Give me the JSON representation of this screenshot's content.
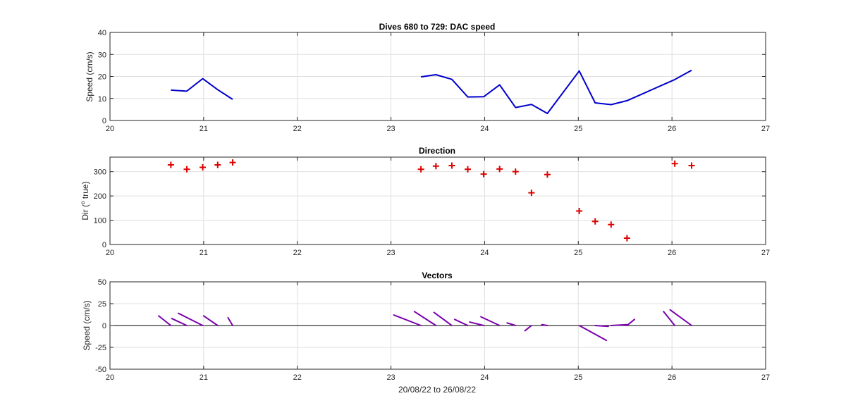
{
  "chart_data": [
    {
      "type": "line",
      "title": "Dives 680 to 729: DAC speed",
      "xlabel": "",
      "ylabel": "Speed (cm/s)",
      "xlim": [
        20,
        27
      ],
      "ylim": [
        0,
        40
      ],
      "xticks": [
        20,
        21,
        22,
        23,
        24,
        25,
        26,
        27
      ],
      "yticks": [
        0,
        10,
        20,
        30,
        40
      ],
      "grid": true,
      "color": "#0000cc",
      "segments": [
        {
          "x": [
            20.65,
            20.82,
            20.99,
            21.15,
            21.31
          ],
          "y": [
            13.8,
            13.3,
            19.0,
            14.0,
            9.6
          ]
        },
        {
          "x": [
            23.32,
            23.48,
            23.65,
            23.82,
            23.99,
            24.16,
            24.33,
            24.5,
            24.67,
            25.01,
            25.18,
            25.35,
            25.52,
            26.03,
            26.21
          ],
          "y": [
            19.8,
            20.8,
            18.7,
            10.7,
            10.8,
            16.2,
            5.9,
            7.3,
            3.2,
            22.5,
            8.0,
            7.2,
            9.0,
            18.6,
            22.8
          ]
        }
      ]
    },
    {
      "type": "scatter",
      "title": "Direction",
      "xlabel": "",
      "ylabel": "Dir (° true)",
      "ylabel_parts": {
        "prefix": "Dir (",
        "sup": "o",
        "suffix": " true)"
      },
      "xlim": [
        20,
        27
      ],
      "ylim": [
        0,
        360
      ],
      "xticks": [
        20,
        21,
        22,
        23,
        24,
        25,
        26,
        27
      ],
      "yticks": [
        0,
        100,
        200,
        300
      ],
      "grid": true,
      "marker": "+",
      "color": "#dd0000",
      "x": [
        20.65,
        20.82,
        20.99,
        21.15,
        21.31,
        23.32,
        23.48,
        23.65,
        23.82,
        23.99,
        24.16,
        24.33,
        24.5,
        24.67,
        25.01,
        25.18,
        25.35,
        25.52,
        26.03,
        26.21
      ],
      "y": [
        328,
        310,
        318,
        328,
        338,
        310,
        323,
        325,
        310,
        290,
        311,
        300,
        213,
        288,
        138,
        95,
        82,
        26,
        333,
        325
      ]
    },
    {
      "type": "line",
      "subtype": "vectors",
      "title": "Vectors",
      "xlabel": "20/08/22 to 26/08/22",
      "ylabel": "Speed (cm/s)",
      "xlim": [
        20,
        27
      ],
      "ylim": [
        -50,
        50
      ],
      "xticks": [
        20,
        21,
        22,
        23,
        24,
        25,
        26,
        27
      ],
      "yticks": [
        -50,
        -25,
        0,
        25,
        50
      ],
      "grid": true,
      "color": "#7a00aa",
      "zero_line": true,
      "vectors": [
        {
          "x0": 20.65,
          "y0": 0,
          "x1": 20.52,
          "y1": 11
        },
        {
          "x0": 20.82,
          "y0": 0,
          "x1": 20.66,
          "y1": 8
        },
        {
          "x0": 20.99,
          "y0": 0,
          "x1": 20.73,
          "y1": 14
        },
        {
          "x0": 21.15,
          "y0": 0,
          "x1": 21.0,
          "y1": 11
        },
        {
          "x0": 21.31,
          "y0": 0,
          "x1": 21.26,
          "y1": 9
        },
        {
          "x0": 23.32,
          "y0": 0,
          "x1": 23.03,
          "y1": 12
        },
        {
          "x0": 23.48,
          "y0": 0,
          "x1": 23.25,
          "y1": 16
        },
        {
          "x0": 23.65,
          "y0": 0,
          "x1": 23.46,
          "y1": 15
        },
        {
          "x0": 23.82,
          "y0": 0,
          "x1": 23.68,
          "y1": 7
        },
        {
          "x0": 23.99,
          "y0": 0,
          "x1": 23.84,
          "y1": 4
        },
        {
          "x0": 24.16,
          "y0": 0,
          "x1": 23.96,
          "y1": 10
        },
        {
          "x0": 24.33,
          "y0": 0,
          "x1": 24.24,
          "y1": 3
        },
        {
          "x0": 24.5,
          "y0": 0,
          "x1": 24.43,
          "y1": -6
        },
        {
          "x0": 24.67,
          "y0": 0,
          "x1": 24.61,
          "y1": 1
        },
        {
          "x0": 25.01,
          "y0": 0,
          "x1": 25.3,
          "y1": -17
        },
        {
          "x0": 25.18,
          "y0": 0,
          "x1": 25.32,
          "y1": -1
        },
        {
          "x0": 25.35,
          "y0": 0,
          "x1": 25.52,
          "y1": 1
        },
        {
          "x0": 25.52,
          "y0": 0,
          "x1": 25.6,
          "y1": 7
        },
        {
          "x0": 26.03,
          "y0": 0,
          "x1": 25.91,
          "y1": 16
        },
        {
          "x0": 26.21,
          "y0": 0,
          "x1": 25.98,
          "y1": 18
        }
      ]
    }
  ]
}
